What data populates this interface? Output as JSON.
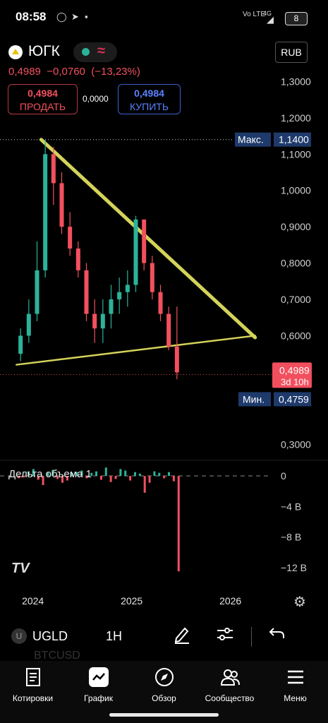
{
  "status_bar": {
    "time": "08:58",
    "network": "Vo LTE",
    "signal": "4G",
    "battery": "8"
  },
  "header": {
    "ticker": "ЮГК",
    "delay_glyph": "≈",
    "currency": "RUB",
    "last_price": "0,4989",
    "change": "−0,0760",
    "change_pct": "(−13,23%)",
    "sell_price": "0,4984",
    "sell_label": "ПРОДАТЬ",
    "spread": "0,0000",
    "buy_price": "0,4984",
    "buy_label": "КУПИТЬ"
  },
  "colors": {
    "up": "#2bb39a",
    "down": "#f2505e",
    "trendline": "#d4d35a",
    "accent_blue": "#3b5fcf",
    "max_label_bg": "#1e3a6b"
  },
  "chart_data": [
    {
      "type": "candlestick",
      "title": "",
      "xlabel": "",
      "ylabel": "",
      "x_ticks": [
        "2024",
        "2025",
        "2026"
      ],
      "y_ticks": [
        "1,3000",
        "1,2000",
        "1,1000",
        "1,0000",
        "0,9000",
        "0,8000",
        "0,7000",
        "0,6000",
        "0,3000"
      ],
      "ylim": [
        0.28,
        1.33
      ],
      "x_range": [
        "2023-09",
        "2026-06"
      ],
      "max_label": "Макс.",
      "max_value": "1,1400",
      "min_label": "Мин.",
      "min_value": "0,4759",
      "last_value": "0,4989",
      "countdown": "3d 10h",
      "trendlines": [
        {
          "from": [
            "2024-02",
            1.14
          ],
          "to": [
            "2026-04",
            0.595
          ]
        },
        {
          "from": [
            "2023-11",
            0.52
          ],
          "to": [
            "2026-04",
            0.6
          ]
        }
      ],
      "series": [
        {
          "x": [
            "2023-11",
            "2023-12",
            "2024-01",
            "2024-02",
            "2024-03",
            "2024-04",
            "2024-05",
            "2024-06",
            "2024-07",
            "2024-08",
            "2024-09",
            "2024-10",
            "2024-11",
            "2024-12",
            "2025-01",
            "2025-02",
            "2025-03",
            "2025-04",
            "2025-05",
            "2025-06"
          ],
          "open": [
            0.55,
            0.6,
            0.66,
            0.78,
            1.1,
            1.02,
            0.9,
            0.84,
            0.78,
            0.66,
            0.62,
            0.66,
            0.7,
            0.72,
            0.74,
            0.92,
            0.8,
            0.72,
            0.66,
            0.57
          ],
          "high": [
            0.62,
            0.7,
            0.86,
            1.14,
            1.12,
            1.05,
            0.94,
            0.86,
            0.8,
            0.7,
            0.7,
            0.74,
            0.76,
            0.78,
            0.93,
            0.92,
            0.82,
            0.74,
            0.68,
            0.68
          ],
          "low": [
            0.53,
            0.58,
            0.64,
            0.76,
            0.96,
            0.88,
            0.82,
            0.76,
            0.64,
            0.58,
            0.58,
            0.62,
            0.66,
            0.68,
            0.72,
            0.78,
            0.7,
            0.64,
            0.56,
            0.48
          ],
          "close": [
            0.6,
            0.66,
            0.78,
            1.1,
            1.02,
            0.9,
            0.84,
            0.78,
            0.66,
            0.62,
            0.66,
            0.7,
            0.72,
            0.74,
            0.92,
            0.8,
            0.72,
            0.66,
            0.57,
            0.4989
          ]
        }
      ]
    },
    {
      "type": "bar",
      "title": "Дельта объема 1",
      "y_ticks": [
        "0",
        "−4 B",
        "−8 B",
        "−12 B"
      ],
      "ylim": [
        -13.5,
        1.3
      ],
      "values": [
        -0.3,
        -0.2,
        0.6,
        0.9,
        -0.5,
        -1.2,
        0.5,
        0.8,
        -0.4,
        -0.9,
        -0.6,
        0.4,
        0.5,
        0.7,
        -0.3,
        0.4,
        0.6,
        -0.5,
        1.1,
        -0.8,
        -0.4,
        0.9,
        0.7,
        -0.6,
        0.5,
        0.3,
        -2.2,
        -0.9,
        0.6,
        0.4,
        -0.3,
        0.5,
        -0.7,
        -12.5
      ]
    }
  ],
  "toolbar": {
    "symbol": "UGLD",
    "symbol_icon": "U",
    "interval": "1H",
    "next_symbol": "BTCUSD",
    "icons": [
      "pencil-icon",
      "sliders-icon",
      "undo-icon"
    ]
  },
  "nav": {
    "items": [
      {
        "label": "Котировки",
        "icon": "list-icon"
      },
      {
        "label": "График",
        "icon": "chart-icon"
      },
      {
        "label": "Обзор",
        "icon": "compass-icon"
      },
      {
        "label": "Сообщество",
        "icon": "people-icon"
      },
      {
        "label": "Меню",
        "icon": "menu-icon"
      }
    ]
  },
  "watermark": "TV"
}
